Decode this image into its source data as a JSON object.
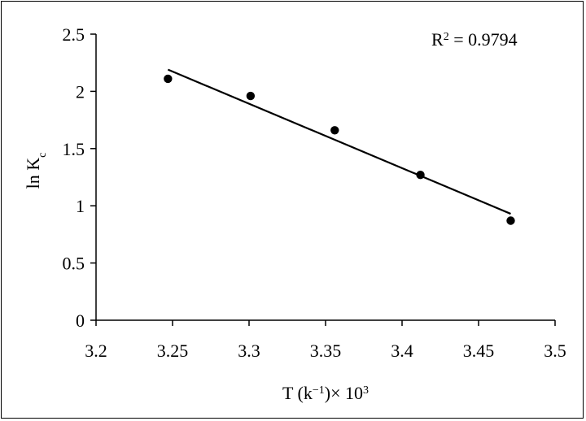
{
  "chart_data": {
    "type": "scatter",
    "title": "",
    "xlabel": "T (k⁻¹)× 10³",
    "xlabel_parts": {
      "base": "T (k",
      "exponent": "−1",
      "close": ")",
      "times": "× 10",
      "times_exponent": "3"
    },
    "ylabel": "ln K_c",
    "ylabel_parts": {
      "base": "ln K",
      "subscript": "c"
    },
    "xlim": [
      3.2,
      3.5
    ],
    "ylim": [
      0,
      2.5
    ],
    "x_ticks": [
      "3.2",
      "3.25",
      "3.3",
      "3.35",
      "3.4",
      "3.45",
      "3.5"
    ],
    "y_ticks": [
      "0",
      "0.5",
      "1",
      "1.5",
      "2",
      "2.5"
    ],
    "grid": false,
    "legend": "none",
    "series": [
      {
        "points": [
          {
            "x": 3.247,
            "y": 2.11
          },
          {
            "x": 3.301,
            "y": 1.96
          },
          {
            "x": 3.356,
            "y": 1.66
          },
          {
            "x": 3.412,
            "y": 1.27
          },
          {
            "x": 3.471,
            "y": 0.87
          }
        ]
      }
    ],
    "trendline": {
      "type": "linear",
      "from": {
        "x": 3.247,
        "y": 2.19
      },
      "to": {
        "x": 3.471,
        "y": 0.93
      }
    },
    "annotation": {
      "label_base": "R",
      "label_exponent": "2",
      "label_rest": " = 0.9794"
    },
    "colors": {
      "marker": "#000000",
      "line": "#000000",
      "axis": "#000000"
    }
  }
}
